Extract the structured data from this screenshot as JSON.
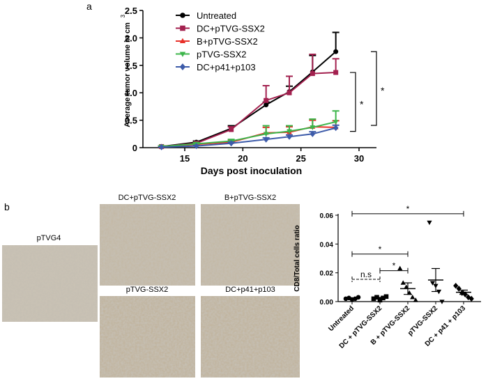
{
  "panel_labels": [
    "a",
    "b"
  ],
  "images": [
    {
      "label": "pTVG4"
    },
    {
      "label": "DC+pTVG-SSX2"
    },
    {
      "label": "B+pTVG-SSX2"
    },
    {
      "label": "pTVG-SSX2"
    },
    {
      "label": "DC+p41+p103"
    }
  ],
  "chart_data": [
    {
      "type": "line",
      "xlabel": "Days post inoculation",
      "ylabel": "Average tumor volume in cm",
      "ylabel_superscript": "3",
      "x": [
        13,
        16,
        19,
        22,
        24,
        26,
        28
      ],
      "xlim": [
        11.4,
        31.5
      ],
      "xticks": [
        15,
        20,
        25,
        30
      ],
      "ylim": [
        0,
        2.5
      ],
      "yticks": [
        0,
        {
          "value": 0.5,
          "label": "0.5"
        },
        {
          "value": 1,
          "label": "1.0"
        },
        {
          "value": 1.5,
          "label": "1.5"
        },
        {
          "value": 2,
          "label": "2.0"
        },
        {
          "value": 2.5,
          "label": "2.5"
        }
      ],
      "series": [
        {
          "name": "Untreated",
          "color": "#000000",
          "marker": "circle",
          "values": [
            0.02,
            0.1,
            0.35,
            0.78,
            1.02,
            1.38,
            1.75
          ],
          "errors": [
            0.01,
            0.02,
            0.05,
            0.05,
            0.1,
            0.3,
            0.35
          ]
        },
        {
          "name": "DC+pTVG-SSX2",
          "color": "#a3214f",
          "marker": "square",
          "values": [
            0.02,
            0.08,
            0.33,
            0.86,
            1.0,
            1.35,
            1.37
          ],
          "errors": [
            0.01,
            0.02,
            0.05,
            0.27,
            0.3,
            0.35,
            0.25
          ]
        },
        {
          "name": "B+pTVG-SSX2",
          "color": "#e8312a",
          "marker": "triangle-up",
          "values": [
            0.02,
            0.06,
            0.1,
            0.27,
            0.28,
            0.38,
            0.37
          ],
          "errors": [
            0.01,
            0.02,
            0.03,
            0.1,
            0.1,
            0.12,
            0.12
          ]
        },
        {
          "name": "pTVG-SSX2",
          "color": "#3cb54a",
          "marker": "triangle-down",
          "values": [
            0.02,
            0.07,
            0.12,
            0.25,
            0.3,
            0.37,
            0.47
          ],
          "errors": [
            0.01,
            0.02,
            0.03,
            0.15,
            0.1,
            0.15,
            0.2
          ]
        },
        {
          "name": "DC+p41+p103",
          "color": "#3d5ba9",
          "marker": "diamond",
          "values": [
            0.01,
            0.03,
            0.08,
            0.15,
            0.2,
            0.25,
            0.36
          ],
          "errors": [
            0.005,
            0.01,
            0.02,
            0.03,
            0.03,
            0.04,
            0.05
          ]
        }
      ],
      "significance": [
        {
          "label": "*",
          "between": [
            "Untreated",
            "pTVG-SSX2"
          ]
        },
        {
          "label": "*",
          "between": [
            "DC+pTVG-SSX2",
            "DC+p41+p103"
          ]
        }
      ]
    },
    {
      "type": "dotplot",
      "ylabel": "CD8/Total cells ratio",
      "categories": [
        "Untreated",
        "DC + pTVG-SSX2",
        "B + pTVG-SSX2",
        "pTVG-SSX2",
        "DC + p41 + p103"
      ],
      "markers": [
        "circle",
        "square",
        "triangle-up",
        "triangle-down",
        "diamond"
      ],
      "ylim": [
        0,
        0.06
      ],
      "yticks": [
        {
          "value": 0,
          "label": "0.00"
        },
        {
          "value": 0.02,
          "label": "0.02"
        },
        {
          "value": 0.04,
          "label": "0.04"
        },
        {
          "value": 0.06,
          "label": "0.06"
        }
      ],
      "points": [
        [
          0.002,
          0.0025,
          0.0015,
          0.002,
          0.003
        ],
        [
          0.002,
          0.003,
          0.001,
          0.0025,
          0.0035
        ],
        [
          0.023,
          0.013,
          0.01,
          0.006,
          0.003,
          0.001
        ],
        [
          0.055,
          0.013,
          0.011,
          0.007,
          0.0
        ],
        [
          0.011,
          0.009,
          0.006,
          0.005,
          0.003,
          0.002
        ]
      ],
      "means": [
        0.002,
        0.0025,
        0.009,
        0.015,
        0.0065
      ],
      "sems": [
        0.0003,
        0.0004,
        0.004,
        0.008,
        0.0015
      ],
      "comparisons": [
        {
          "label": "*",
          "from": "Untreated",
          "to": "DC + p41 + p103",
          "y": 0.061,
          "dashed": false
        },
        {
          "label": "*",
          "from": "Untreated",
          "to": "B + pTVG-SSX2",
          "y": 0.033,
          "dashed": false
        },
        {
          "label": "*",
          "from": "DC + pTVG-SSX2",
          "to": "B + pTVG-SSX2",
          "y": 0.0215,
          "dashed": false
        },
        {
          "label": "n.s",
          "from": "Untreated",
          "to": "DC + pTVG-SSX2",
          "y": 0.0155,
          "dashed": true
        }
      ]
    }
  ]
}
